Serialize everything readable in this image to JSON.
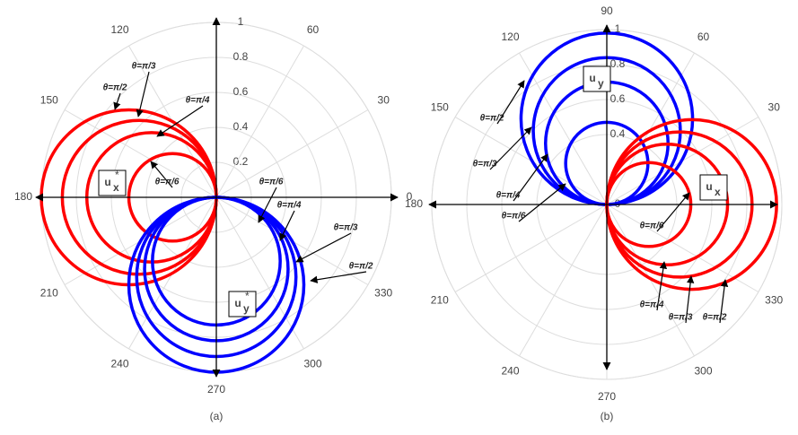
{
  "chart_data": [
    {
      "type": "polar",
      "caption": "(a)",
      "rlim": [
        0,
        1
      ],
      "rticks": [
        0.2,
        0.4,
        0.6,
        0.8,
        1
      ],
      "thetaticks": [
        0,
        30,
        60,
        120,
        150,
        180,
        210,
        240,
        270,
        300,
        330
      ],
      "series": [
        {
          "name": "θ=π/2",
          "color": "#ff0000",
          "direction": 180,
          "diameter": 1.0
        },
        {
          "name": "θ=π/3",
          "color": "#ff0000",
          "direction": 180,
          "diameter": 0.88
        },
        {
          "name": "θ=π/4",
          "color": "#ff0000",
          "direction": 180,
          "diameter": 0.74
        },
        {
          "name": "θ=π/6",
          "color": "#ff0000",
          "direction": 180,
          "diameter": 0.5
        },
        {
          "name": "θ=π/6",
          "color": "#0000ff",
          "direction": 270,
          "diameter": 0.73
        },
        {
          "name": "θ=π/4",
          "color": "#0000ff",
          "direction": 270,
          "diameter": 0.82
        },
        {
          "name": "θ=π/3",
          "color": "#0000ff",
          "direction": 270,
          "diameter": 0.91
        },
        {
          "name": "θ=π/2",
          "color": "#0000ff",
          "direction": 270,
          "diameter": 1.0
        }
      ],
      "annotations": [
        {
          "base": "u",
          "sup": "*",
          "sub": "x"
        },
        {
          "base": "u",
          "sup": "*",
          "sub": "y"
        }
      ]
    },
    {
      "type": "polar",
      "caption": "(b)",
      "rlim": [
        0,
        1
      ],
      "rticks": [
        0,
        0.4,
        0.6,
        0.8,
        1
      ],
      "thetaticks": [
        30,
        60,
        90,
        120,
        150,
        180,
        210,
        240,
        270,
        300,
        330
      ],
      "series": [
        {
          "name": "θ=π/2",
          "color": "#0000ff",
          "direction": 90,
          "diameter": 0.98
        },
        {
          "name": "θ=π/3",
          "color": "#0000ff",
          "direction": 90,
          "diameter": 0.84
        },
        {
          "name": "θ=π/4",
          "color": "#0000ff",
          "direction": 90,
          "diameter": 0.7
        },
        {
          "name": "θ=π/6",
          "color": "#0000ff",
          "direction": 90,
          "diameter": 0.47
        },
        {
          "name": "θ=π/6",
          "color": "#ff0000",
          "direction": 0,
          "diameter": 0.48
        },
        {
          "name": "θ=π/4",
          "color": "#ff0000",
          "direction": 0,
          "diameter": 0.69
        },
        {
          "name": "θ=π/3",
          "color": "#ff0000",
          "direction": 0,
          "diameter": 0.83
        },
        {
          "name": "θ=π/2",
          "color": "#ff0000",
          "direction": 0,
          "diameter": 0.97
        }
      ],
      "annotations": [
        {
          "base": "u",
          "sub": "y"
        },
        {
          "base": "u",
          "sub": "x"
        }
      ]
    }
  ]
}
